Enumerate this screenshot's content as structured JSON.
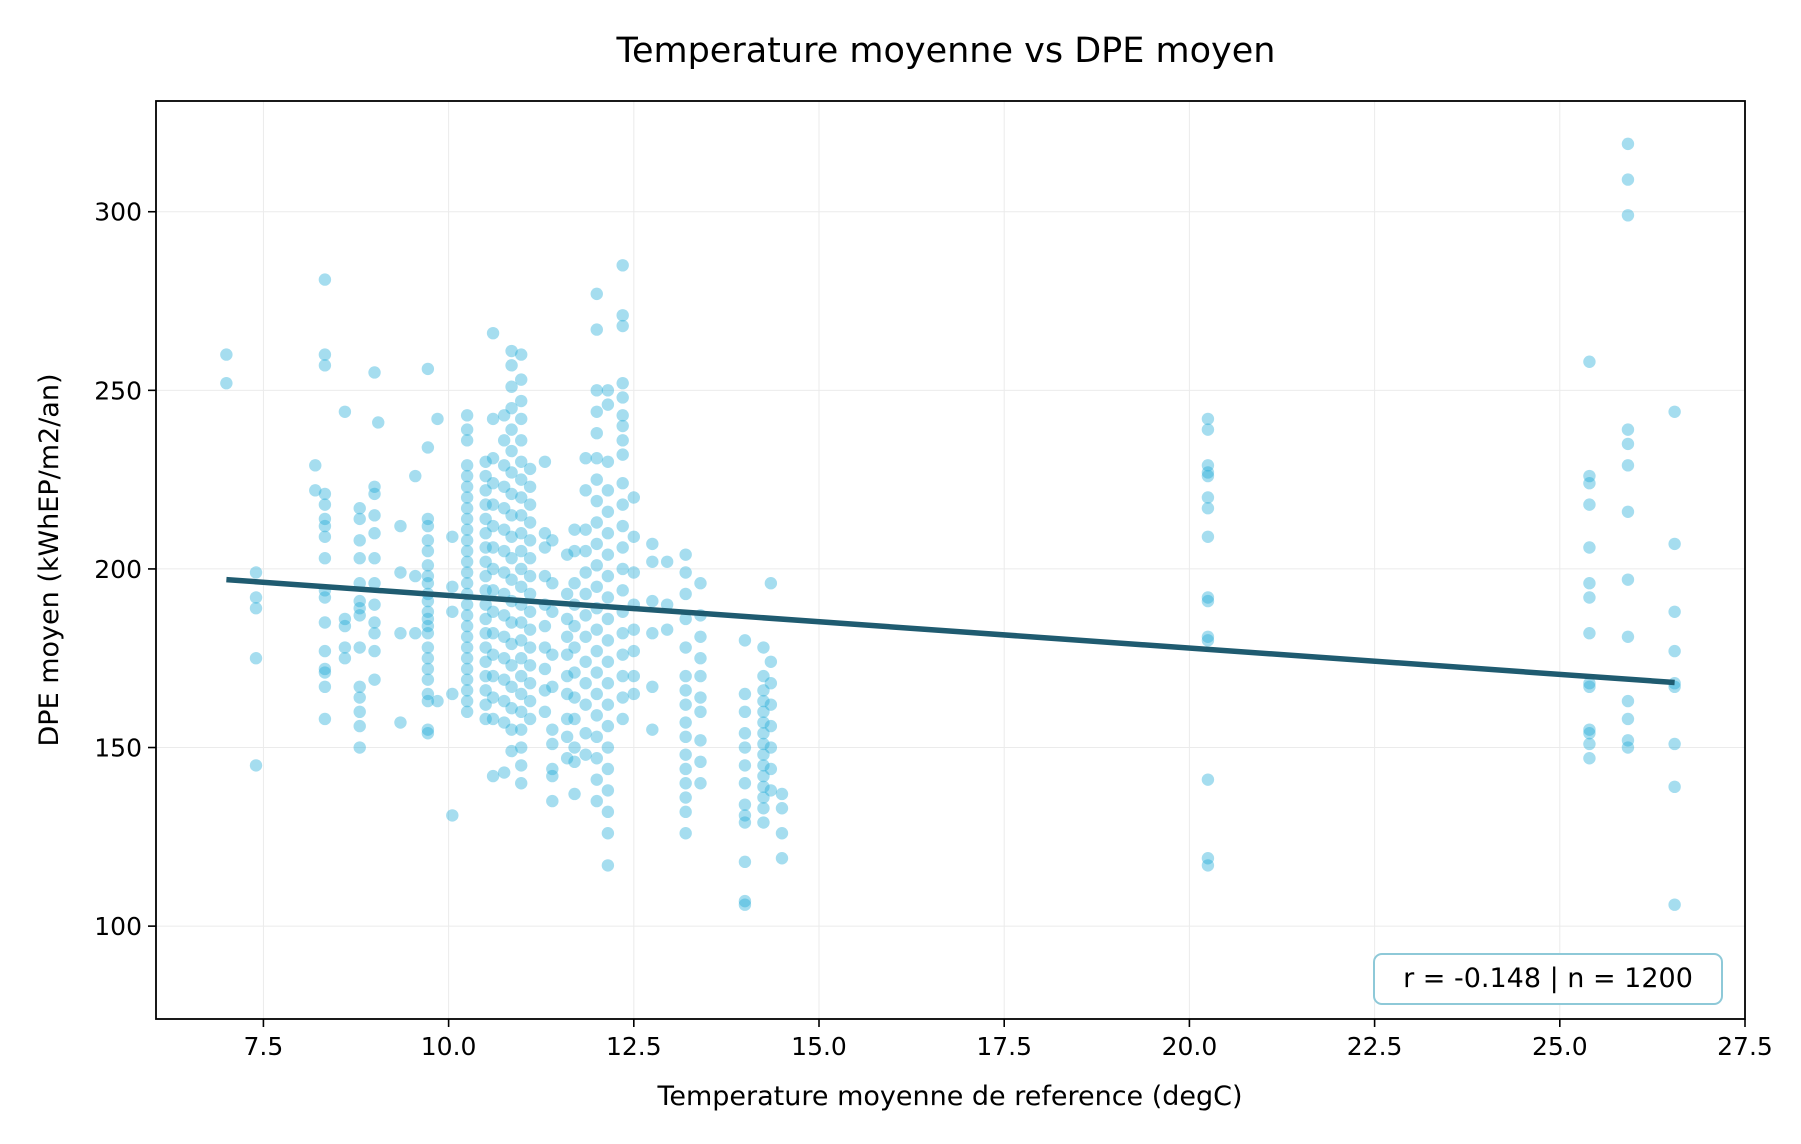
{
  "chart_data": {
    "type": "scatter",
    "title": "Temperature moyenne vs DPE moyen",
    "xlabel": "Temperature moyenne de reference (degC)",
    "ylabel": "DPE moyen (kWhEP/m2/an)",
    "xlim": [
      6.05,
      27.5
    ],
    "ylim": [
      74,
      331
    ],
    "x_ticks": [
      7.5,
      10.0,
      12.5,
      15.0,
      17.5,
      20.0,
      22.5,
      25.0,
      27.5
    ],
    "x_tick_labels": [
      "7.5",
      "10.0",
      "12.5",
      "15.0",
      "17.5",
      "20.0",
      "22.5",
      "25.0",
      "27.5"
    ],
    "y_ticks": [
      100,
      150,
      200,
      250,
      300
    ],
    "y_tick_labels": [
      "100",
      "150",
      "200",
      "250",
      "300"
    ],
    "grid": true,
    "point_color": "#1fa9d6",
    "point_opacity": 0.4,
    "trend_color": "#1f5b70",
    "annotation": "r = -0.148 | n = 1200",
    "annotation_border_color": "#8ec9d8",
    "trend_line": {
      "x": [
        7.0,
        26.55
      ],
      "y": [
        197.0,
        168.2
      ]
    },
    "column_groups": [
      {
        "x": 7.0,
        "values": [
          260,
          252
        ]
      },
      {
        "x": 7.4,
        "values": [
          199,
          192,
          189,
          175,
          145
        ]
      },
      {
        "x": 8.2,
        "values": [
          229,
          222
        ]
      },
      {
        "x": 8.33,
        "values": [
          281,
          260,
          257,
          221,
          218,
          214,
          212,
          209,
          203,
          194,
          192,
          185,
          177,
          172,
          171,
          167,
          158
        ]
      },
      {
        "x": 8.6,
        "values": [
          244,
          186,
          184,
          178,
          175
        ]
      },
      {
        "x": 8.8,
        "values": [
          217,
          214,
          208,
          203,
          196,
          191,
          189,
          187,
          178,
          167,
          164,
          160,
          156,
          150
        ]
      },
      {
        "x": 9.0,
        "values": [
          255,
          223,
          221,
          215,
          210,
          203,
          196,
          190,
          185,
          182,
          177,
          169
        ]
      },
      {
        "x": 9.05,
        "values": [
          241
        ]
      },
      {
        "x": 9.35,
        "values": [
          212,
          199,
          182,
          157
        ]
      },
      {
        "x": 9.55,
        "values": [
          226,
          198,
          182
        ]
      },
      {
        "x": 9.72,
        "values": [
          256,
          234,
          214,
          212,
          208,
          205,
          201,
          198,
          196,
          193,
          191,
          188,
          186,
          184,
          182,
          178,
          175,
          172,
          169,
          165,
          163,
          155,
          154
        ]
      },
      {
        "x": 9.85,
        "values": [
          242,
          163
        ]
      },
      {
        "x": 10.05,
        "values": [
          209,
          195,
          188,
          165,
          131
        ]
      },
      {
        "x": 10.25,
        "values": [
          243,
          239,
          236,
          229,
          226,
          223,
          220,
          217,
          214,
          211,
          208,
          205,
          202,
          199,
          196,
          193,
          190,
          187,
          184,
          181,
          178,
          175,
          172,
          169,
          166,
          163,
          160
        ]
      },
      {
        "x": 10.5,
        "values": [
          230,
          226,
          222,
          218,
          214,
          210,
          206,
          202,
          198,
          194,
          190,
          186,
          182,
          178,
          174,
          170,
          166,
          162,
          158
        ]
      },
      {
        "x": 10.6,
        "values": [
          266,
          242,
          231,
          224,
          218,
          212,
          206,
          200,
          194,
          188,
          182,
          176,
          170,
          164,
          158,
          142
        ]
      },
      {
        "x": 10.75,
        "values": [
          243,
          236,
          229,
          223,
          217,
          211,
          205,
          199,
          193,
          187,
          181,
          175,
          169,
          163,
          157,
          143
        ]
      },
      {
        "x": 10.85,
        "values": [
          261,
          257,
          251,
          245,
          239,
          233,
          227,
          221,
          215,
          209,
          203,
          197,
          191,
          185,
          179,
          173,
          167,
          161,
          155,
          149
        ]
      },
      {
        "x": 10.98,
        "values": [
          260,
          253,
          247,
          242,
          236,
          230,
          225,
          220,
          215,
          210,
          205,
          200,
          195,
          190,
          185,
          180,
          175,
          170,
          165,
          160,
          155,
          150,
          145,
          140
        ]
      },
      {
        "x": 11.1,
        "values": [
          228,
          223,
          218,
          213,
          208,
          203,
          198,
          193,
          188,
          183,
          178,
          173,
          168,
          163,
          158
        ]
      },
      {
        "x": 11.3,
        "values": [
          230,
          210,
          206,
          198,
          190,
          184,
          178,
          172,
          166,
          160
        ]
      },
      {
        "x": 11.4,
        "values": [
          208,
          196,
          188,
          176,
          167,
          155,
          151,
          144,
          142,
          135
        ]
      },
      {
        "x": 11.6,
        "values": [
          204,
          193,
          186,
          181,
          176,
          170,
          165,
          158,
          153,
          147
        ]
      },
      {
        "x": 11.7,
        "values": [
          211,
          205,
          196,
          190,
          184,
          178,
          171,
          164,
          158,
          150,
          146,
          137
        ]
      },
      {
        "x": 11.85,
        "values": [
          231,
          222,
          211,
          205,
          199,
          193,
          187,
          181,
          174,
          168,
          162,
          154,
          148
        ]
      },
      {
        "x": 12.0,
        "values": [
          277,
          267,
          250,
          244,
          238,
          231,
          225,
          219,
          213,
          207,
          201,
          195,
          189,
          183,
          177,
          171,
          165,
          159,
          153,
          147,
          141,
          135
        ]
      },
      {
        "x": 12.15,
        "values": [
          250,
          246,
          230,
          222,
          216,
          210,
          204,
          198,
          192,
          186,
          180,
          174,
          168,
          162,
          156,
          150,
          144,
          138,
          132,
          126,
          117
        ]
      },
      {
        "x": 12.35,
        "values": [
          285,
          271,
          268,
          252,
          248,
          243,
          240,
          236,
          232,
          224,
          218,
          212,
          206,
          200,
          194,
          188,
          182,
          176,
          170,
          164,
          158
        ]
      },
      {
        "x": 12.5,
        "values": [
          220,
          209,
          199,
          190,
          183,
          177,
          170,
          165
        ]
      },
      {
        "x": 12.75,
        "values": [
          207,
          202,
          191,
          182,
          167,
          155
        ]
      },
      {
        "x": 12.95,
        "values": [
          202,
          190,
          183
        ]
      },
      {
        "x": 13.2,
        "values": [
          204,
          199,
          193,
          186,
          178,
          170,
          166,
          162,
          157,
          153,
          148,
          144,
          140,
          136,
          132,
          126
        ]
      },
      {
        "x": 13.4,
        "values": [
          196,
          187,
          181,
          175,
          170,
          164,
          160,
          152,
          146,
          140
        ]
      },
      {
        "x": 14.0,
        "values": [
          180,
          165,
          160,
          154,
          150,
          145,
          140,
          134,
          131,
          129,
          118,
          107,
          106
        ]
      },
      {
        "x": 14.25,
        "values": [
          178,
          170,
          166,
          163,
          160,
          157,
          154,
          151,
          148,
          145,
          142,
          139,
          136,
          133,
          129
        ]
      },
      {
        "x": 14.35,
        "values": [
          196,
          174,
          168,
          162,
          156,
          150,
          144,
          138
        ]
      },
      {
        "x": 14.5,
        "values": [
          137,
          133,
          126,
          119
        ]
      },
      {
        "x": 20.25,
        "values": [
          242,
          239,
          229,
          227,
          226,
          220,
          217,
          209,
          192,
          191,
          181,
          180,
          141,
          119,
          117
        ]
      },
      {
        "x": 25.4,
        "values": [
          258,
          226,
          224,
          218,
          206,
          196,
          192,
          182,
          168,
          167,
          155,
          154,
          151,
          147
        ]
      },
      {
        "x": 25.92,
        "values": [
          319,
          309,
          299,
          239,
          235,
          229,
          216,
          197,
          181,
          163,
          158,
          152,
          150
        ]
      },
      {
        "x": 26.55,
        "values": [
          244,
          207,
          188,
          177,
          168,
          167,
          151,
          139,
          106
        ]
      }
    ]
  }
}
